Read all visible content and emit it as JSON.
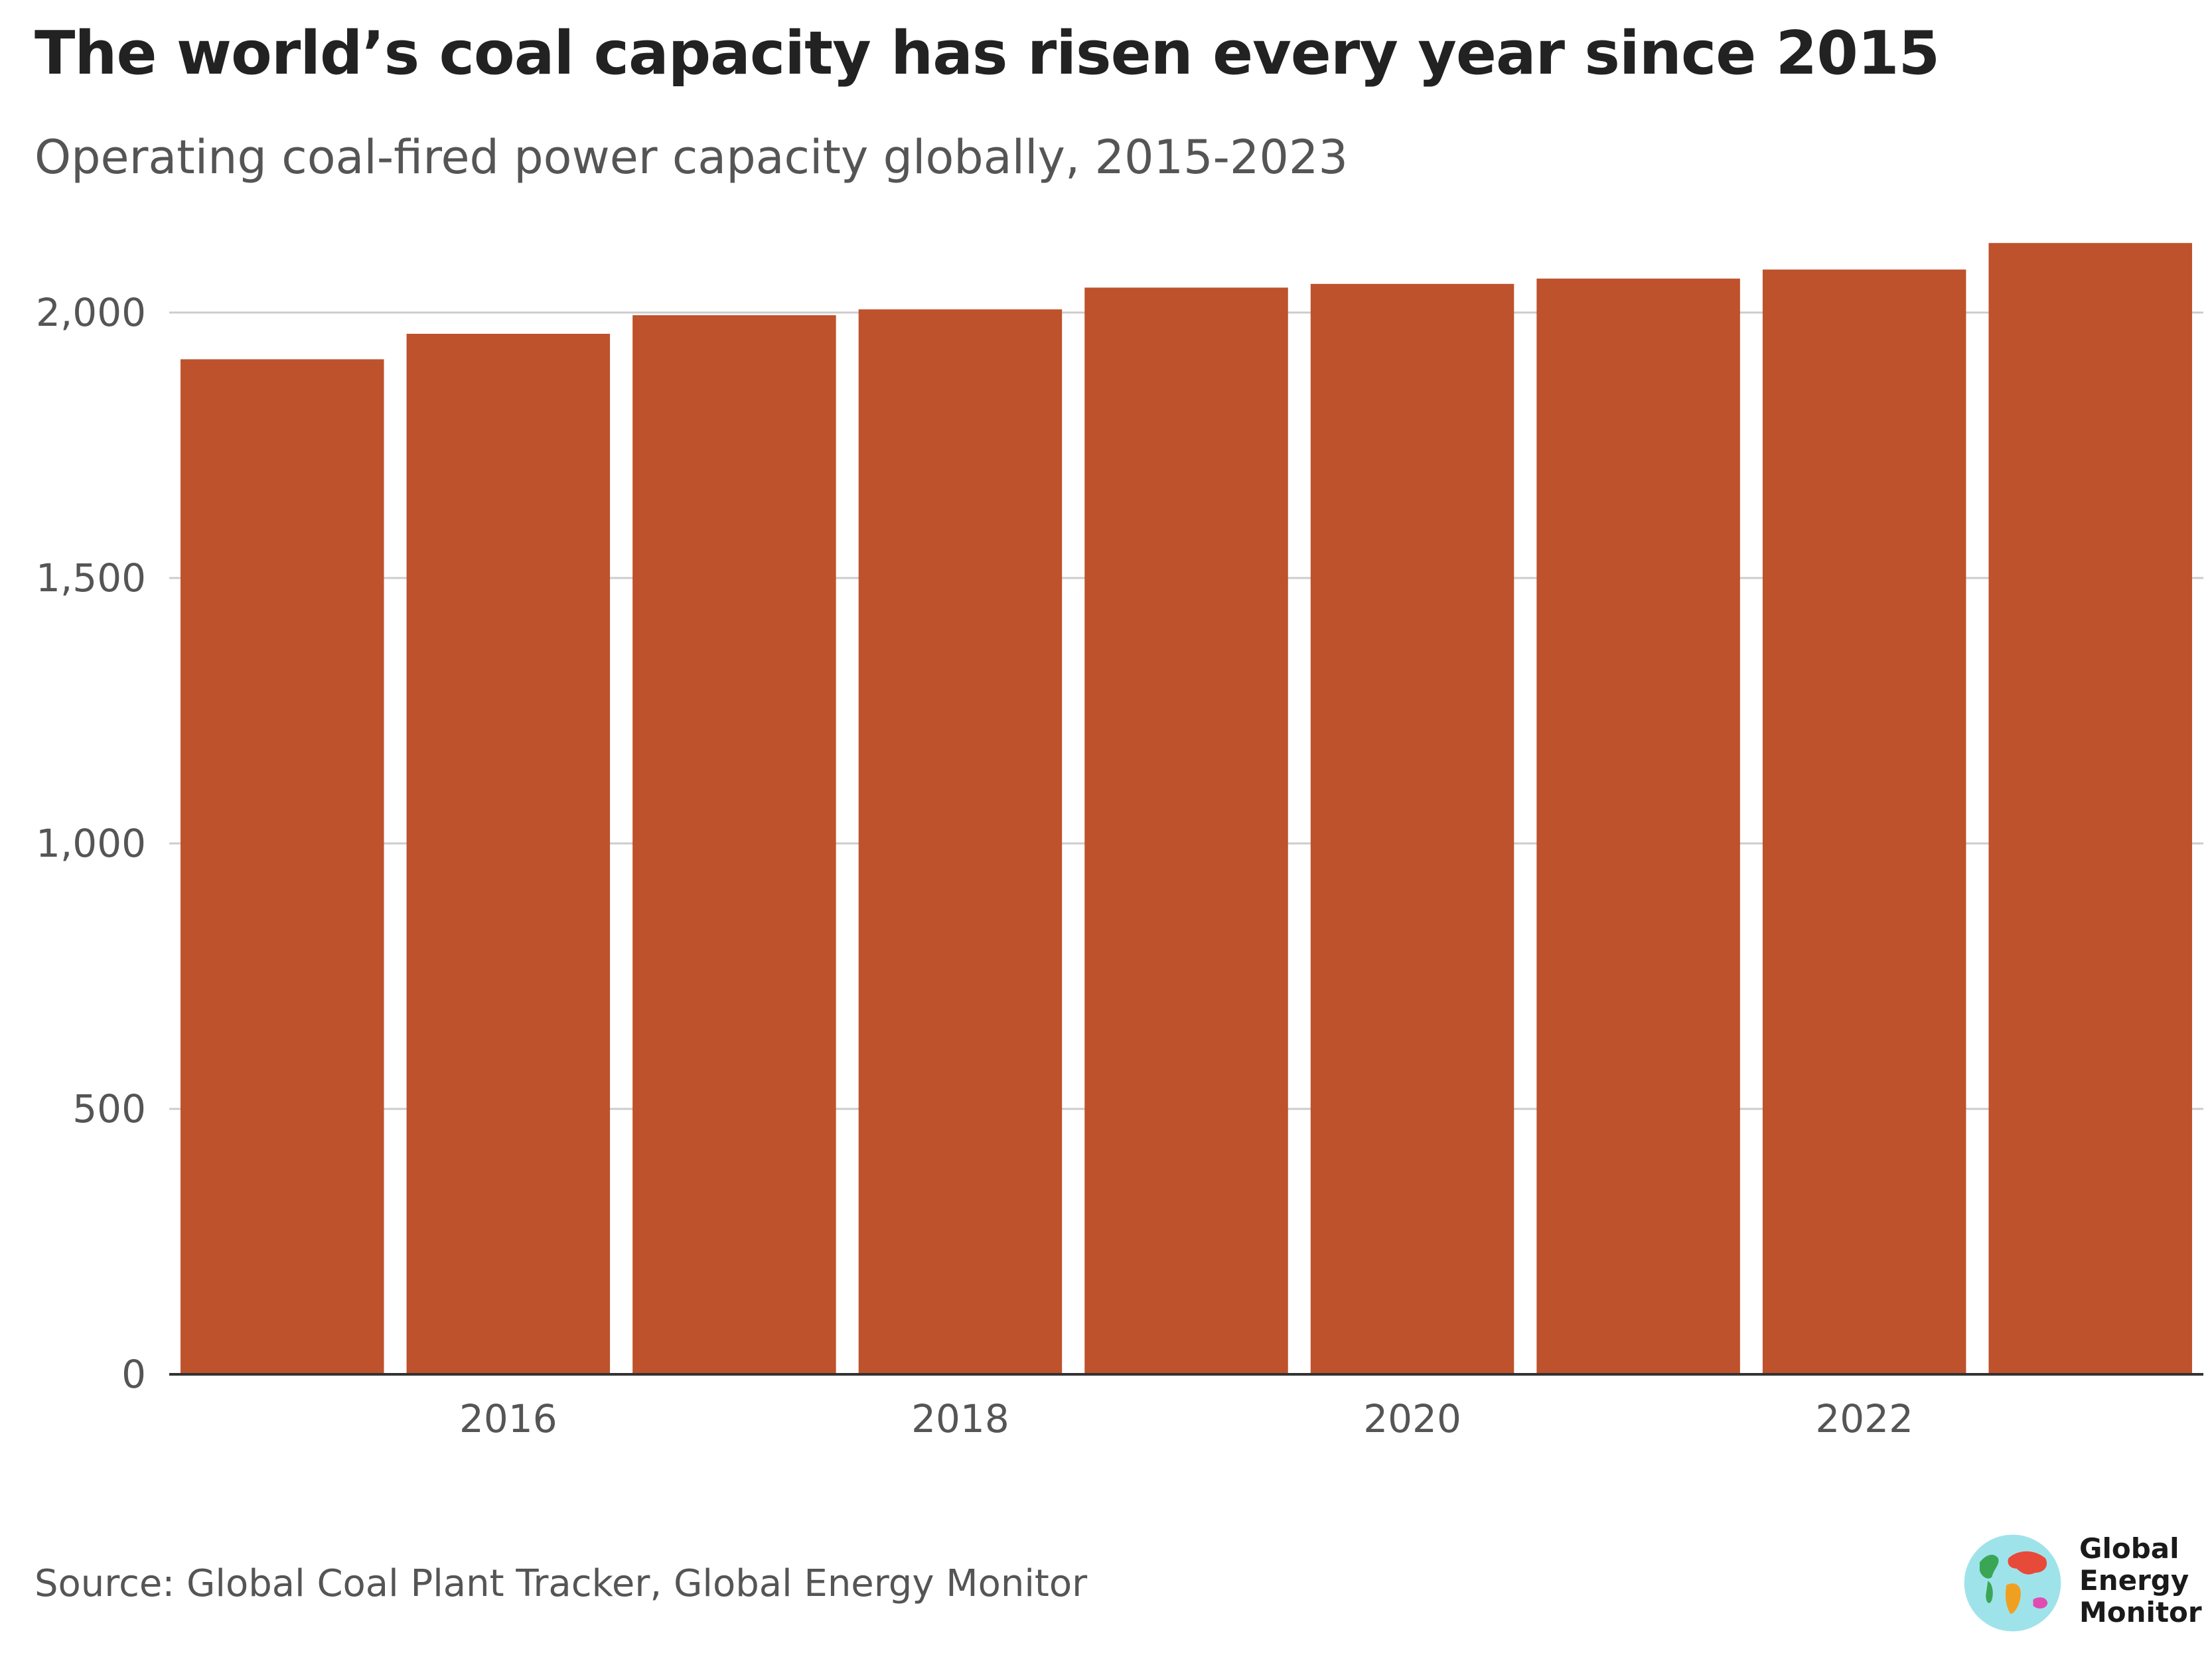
{
  "title": "The world’s coal capacity has risen every year since 2015",
  "subtitle": "Operating coal-fired power capacity globally, 2015-2023",
  "source": "Source: Global Coal Plant Tracker, Global Energy Monitor",
  "logo": {
    "line1": "Global",
    "line2": "Energy",
    "line3": "Monitor"
  },
  "colors": {
    "bar": "#BE522C",
    "grid": "#CCCCCC",
    "axis": "#333333",
    "text": "#555555",
    "title": "#222222"
  },
  "chart_data": {
    "type": "bar",
    "categories": [
      "2015",
      "2016",
      "2017",
      "2018",
      "2019",
      "2020",
      "2021",
      "2022",
      "2023"
    ],
    "values": [
      1912,
      1960,
      1995,
      2006,
      2047,
      2054,
      2064,
      2081,
      2131
    ],
    "x_tick_labels": [
      "2016",
      "2018",
      "2020",
      "2022"
    ],
    "y_ticks": [
      0,
      500,
      1000,
      1500,
      2000
    ],
    "y_tick_labels": [
      "0",
      "500",
      "1,000",
      "1,500",
      "2,000"
    ],
    "ylim": [
      0,
      2131
    ],
    "grid": true
  }
}
